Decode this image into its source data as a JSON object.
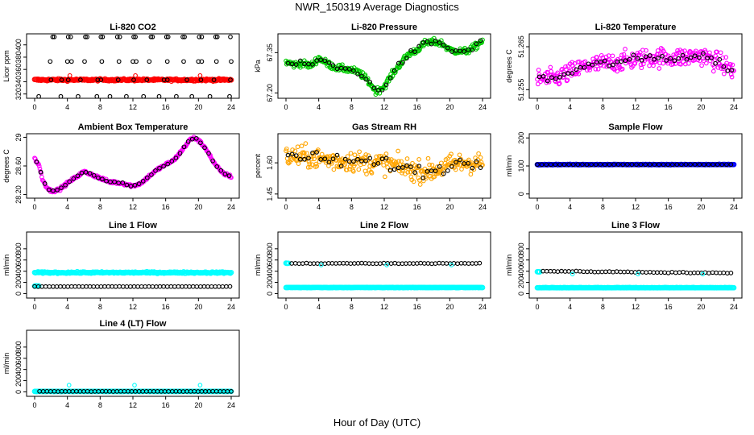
{
  "figure": {
    "title": "NWR_150319  Average Diagnostics",
    "xlabel": "Hour of Day (UTC)"
  },
  "colors": {
    "black": "#000000",
    "red": "#ff0000",
    "green": "#00cc00",
    "magenta": "#ff00ff",
    "orange": "#ffa500",
    "blue": "#0000ff",
    "cyan": "#00ffff"
  },
  "chart_data": [
    {
      "type": "scatter",
      "title": "Li-820 CO2",
      "ylabel": "Licor ppm",
      "xlim": [
        0,
        24
      ],
      "ylim": [
        313,
        418
      ],
      "xticks": [
        "0",
        "4",
        "8",
        "12",
        "16",
        "20",
        "24"
      ],
      "yticks": [
        320,
        340,
        360,
        380,
        400
      ],
      "series": [
        {
          "color": "red",
          "style": "band",
          "y": 343,
          "noise": 1.5
        },
        {
          "color": "black",
          "style": "sparse",
          "groups": [
            {
              "y": 413,
              "x": [
                2.2,
                2.4,
                4.1,
                4.4,
                6.2,
                6.4,
                8.1,
                8.3,
                10.1,
                10.4,
                12.1,
                12.3,
                14.2,
                14.4,
                16.1,
                16.3,
                18.1,
                18.3,
                20.1,
                20.4,
                22.1,
                22.3,
                23.9
              ]
            },
            {
              "y": 373,
              "x": [
                1.9,
                4.0,
                4.5,
                6.1,
                8.2,
                10.3,
                12.0,
                12.4,
                14.0,
                16.2,
                18.2,
                20.0,
                20.4,
                22.2,
                24.0
              ]
            },
            {
              "y": 316,
              "x": [
                0.5,
                3.2,
                5.3,
                7.6,
                9.2,
                11.2,
                13.3,
                15.2,
                17.3,
                19.2,
                21.4,
                23.8
              ]
            }
          ]
        },
        {
          "color": "black",
          "style": "dots",
          "y": 343,
          "x": [
            2.0,
            3.3,
            4.1,
            5.6,
            7.7,
            8.1,
            10.2,
            12.1,
            13.7,
            15.8,
            16.2,
            18.6,
            20.3,
            21.9,
            23.9
          ]
        },
        {
          "color": "red",
          "style": "dots",
          "y": 350,
          "x": [
            4.3,
            12.3,
            20.2
          ]
        }
      ]
    },
    {
      "type": "scatter",
      "title": "Li-820 Pressure",
      "ylabel": "kPa",
      "xlim": [
        0,
        24
      ],
      "ylim": [
        67.18,
        67.42
      ],
      "xticks": [
        "0",
        "4",
        "8",
        "12",
        "16",
        "20",
        "24"
      ],
      "yticks": [
        67.2,
        67.35
      ],
      "series": [
        {
          "color": "green",
          "style": "curve",
          "noise": 0.012,
          "kx": [
            0,
            1,
            2,
            3,
            4,
            5,
            6,
            7,
            8,
            9,
            10,
            11,
            12,
            13,
            14,
            15,
            16,
            17,
            18,
            19,
            20,
            21,
            22,
            23,
            24
          ],
          "ky": [
            67.315,
            67.305,
            67.31,
            67.3,
            67.33,
            67.31,
            67.295,
            67.29,
            67.285,
            67.275,
            67.245,
            67.205,
            67.225,
            67.27,
            67.31,
            67.345,
            67.36,
            67.385,
            67.39,
            67.385,
            67.36,
            67.355,
            67.355,
            67.37,
            67.395
          ]
        },
        {
          "color": "black",
          "style": "follow",
          "step": 0.5,
          "noise": 0.01
        }
      ]
    },
    {
      "type": "scatter",
      "title": "Li-820 Temperature",
      "ylabel": "degrees C",
      "xlim": [
        0,
        24
      ],
      "ylim": [
        51.253,
        51.268
      ],
      "xticks": [
        "0",
        "4",
        "8",
        "12",
        "16",
        "20",
        "24"
      ],
      "yticks": [
        51.255,
        51.265
      ],
      "series": [
        {
          "color": "magenta",
          "style": "curve",
          "noise": 0.0022,
          "kx": [
            0,
            2,
            4,
            6,
            8,
            10,
            12,
            14,
            16,
            18,
            20,
            22,
            24
          ],
          "ky": [
            51.2575,
            51.2575,
            51.259,
            51.2605,
            51.261,
            51.2615,
            51.262,
            51.2625,
            51.2625,
            51.2625,
            51.263,
            51.2615,
            51.2595
          ]
        },
        {
          "color": "black",
          "style": "follow",
          "step": 0.5,
          "noise": 0.001
        }
      ]
    },
    {
      "type": "scatter",
      "title": "Ambient Box Temperature",
      "ylabel": "degrees C",
      "xlim": [
        0,
        24
      ],
      "ylim": [
        28.15,
        29.05
      ],
      "xticks": [
        "0",
        "4",
        "8",
        "12",
        "16",
        "20",
        "24"
      ],
      "yticks": [
        28.2,
        28.6,
        29.0
      ],
      "series": [
        {
          "color": "magenta",
          "style": "curve",
          "noise": 0.02,
          "kx": [
            0,
            0.5,
            1,
            1.5,
            2,
            3,
            4,
            5,
            6,
            7,
            8,
            9,
            10,
            11,
            12,
            13,
            14,
            15,
            16,
            17,
            18,
            19,
            19.5,
            20,
            21,
            22,
            23,
            24
          ],
          "ky": [
            28.7,
            28.62,
            28.4,
            28.3,
            28.25,
            28.27,
            28.36,
            28.44,
            28.52,
            28.48,
            28.43,
            28.38,
            28.37,
            28.35,
            28.32,
            28.36,
            28.46,
            28.55,
            28.62,
            28.68,
            28.82,
            28.97,
            28.99,
            28.96,
            28.83,
            28.62,
            28.5,
            28.45
          ]
        },
        {
          "color": "black",
          "style": "follow",
          "step": 0.5,
          "noise": 0.012
        }
      ]
    },
    {
      "type": "scatter",
      "title": "Gas Stream RH",
      "ylabel": "percent",
      "xlim": [
        0,
        24
      ],
      "ylim": [
        1.43,
        1.74
      ],
      "xticks": [
        "0",
        "4",
        "8",
        "12",
        "16",
        "20",
        "24"
      ],
      "yticks": [
        1.45,
        1.6
      ],
      "series": [
        {
          "color": "orange",
          "style": "curve",
          "noise": 0.05,
          "kx": [
            0,
            2,
            4,
            6,
            8,
            10,
            12,
            14,
            16,
            18,
            20,
            22,
            24
          ],
          "ky": [
            1.63,
            1.63,
            1.62,
            1.61,
            1.61,
            1.6,
            1.6,
            1.58,
            1.56,
            1.56,
            1.59,
            1.6,
            1.6
          ]
        },
        {
          "color": "black",
          "style": "follow",
          "step": 0.5,
          "noise": 0.03
        }
      ]
    },
    {
      "type": "scatter",
      "title": "Sample Flow",
      "ylabel": "ml/min",
      "xlim": [
        0,
        24
      ],
      "ylim": [
        -15,
        215
      ],
      "xticks": [
        "0",
        "4",
        "8",
        "12",
        "16",
        "20",
        "24"
      ],
      "yticks": [
        0,
        100,
        200
      ],
      "series": [
        {
          "color": "blue",
          "style": "band",
          "y": 105,
          "noise": 0.6
        },
        {
          "color": "black",
          "style": "band",
          "y": 105,
          "noise": 0.4,
          "step": 0.55
        }
      ]
    },
    {
      "type": "scatter",
      "title": "Line 1 Flow",
      "ylabel": "ml/min",
      "xlim": [
        0,
        24
      ],
      "ylim": [
        -80,
        1100
      ],
      "xticks": [
        "0",
        "4",
        "8",
        "12",
        "16",
        "20",
        "24"
      ],
      "yticks": [
        0,
        200,
        400,
        600,
        800
      ],
      "series": [
        {
          "color": "cyan",
          "style": "band",
          "y": 375,
          "noise": 12
        },
        {
          "color": "cyan",
          "style": "band",
          "y": 135,
          "noise": 3,
          "x0": 0,
          "x1": 0.5
        },
        {
          "color": "black",
          "style": "band",
          "y": 125,
          "noise": 2,
          "step": 0.45
        }
      ]
    },
    {
      "type": "scatter",
      "title": "Line 2 Flow",
      "ylabel": "ml/min",
      "xlim": [
        0,
        24
      ],
      "ylim": [
        -80,
        1100
      ],
      "xticks": [
        "0",
        "4",
        "8",
        "12",
        "16",
        "20",
        "24"
      ],
      "yticks": [
        0,
        200,
        400,
        600,
        800
      ],
      "series": [
        {
          "color": "cyan",
          "style": "band",
          "y": 108,
          "noise": 3
        },
        {
          "color": "cyan",
          "style": "band",
          "y": 540,
          "noise": 5,
          "x0": 0,
          "x1": 0.3
        },
        {
          "color": "black",
          "style": "band",
          "y": 540,
          "noise": 6,
          "step": 0.45,
          "x0": 0.7
        },
        {
          "color": "cyan",
          "style": "dots",
          "y": 510,
          "x": [
            4.3,
            12.3,
            20.2
          ]
        }
      ]
    },
    {
      "type": "scatter",
      "title": "Line 3 Flow",
      "ylabel": "ml/min",
      "xlim": [
        0,
        24
      ],
      "ylim": [
        -80,
        1100
      ],
      "xticks": [
        "0",
        "4",
        "8",
        "12",
        "16",
        "20",
        "24"
      ],
      "yticks": [
        0,
        200,
        400,
        600,
        800
      ],
      "series": [
        {
          "color": "cyan",
          "style": "band",
          "y": 105,
          "noise": 3
        },
        {
          "color": "cyan",
          "style": "band",
          "y": 390,
          "noise": 5,
          "x0": 0,
          "x1": 0.3
        },
        {
          "color": "black",
          "style": "curve",
          "noise": 8,
          "step": 0.45,
          "kx": [
            0.7,
            12,
            24
          ],
          "ky": [
            400,
            385,
            365
          ]
        },
        {
          "color": "cyan",
          "style": "dots",
          "y": 350,
          "x": [
            4.3,
            12.3,
            20.2
          ]
        }
      ]
    },
    {
      "type": "scatter",
      "title": "Line 4 (LT) Flow",
      "ylabel": "ml/min",
      "xlim": [
        0,
        24
      ],
      "ylim": [
        -80,
        1100
      ],
      "xticks": [
        "0",
        "4",
        "8",
        "12",
        "16",
        "20",
        "24"
      ],
      "yticks": [
        0,
        200,
        400,
        600,
        800
      ],
      "series": [
        {
          "color": "cyan",
          "style": "band",
          "y": 8,
          "noise": 1.5
        },
        {
          "color": "black",
          "style": "band",
          "y": 8,
          "noise": 1.5,
          "step": 0.45,
          "x0": 0.6
        },
        {
          "color": "cyan",
          "style": "dots",
          "y": 120,
          "x": [
            4.2,
            12.2,
            20.2
          ]
        }
      ]
    }
  ]
}
